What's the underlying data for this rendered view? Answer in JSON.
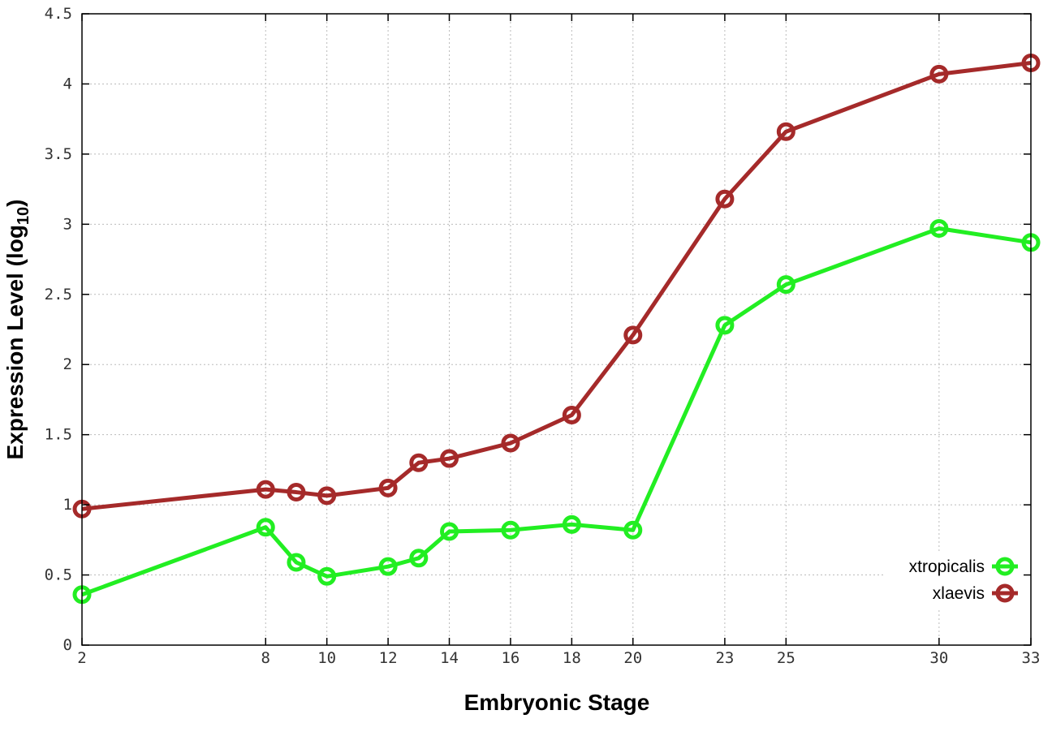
{
  "chart_data": {
    "type": "line",
    "title": "",
    "xlabel": "Embryonic Stage",
    "ylabel": "Expression Level (log",
    "ylabel_subscript": "10",
    "ylabel_close": ")",
    "x": [
      2,
      8,
      9,
      10,
      12,
      13,
      14,
      16,
      18,
      20,
      23,
      25,
      30,
      33
    ],
    "xticks": [
      2,
      8,
      10,
      12,
      14,
      16,
      18,
      20,
      23,
      25,
      30,
      33
    ],
    "yticks": [
      "0",
      "0.5",
      "1",
      "1.5",
      "2",
      "2.5",
      "3",
      "3.5",
      "4",
      "4.5"
    ],
    "xlim": [
      2,
      33
    ],
    "ylim": [
      0,
      4.5
    ],
    "grid": true,
    "legend_position": "bottom-right",
    "series": [
      {
        "name": "xtropicalis",
        "color": "#22ee22",
        "values": [
          0.36,
          0.84,
          0.59,
          0.49,
          0.56,
          0.62,
          0.81,
          0.82,
          0.86,
          0.82,
          2.28,
          2.57,
          2.97,
          2.87
        ]
      },
      {
        "name": "xlaevis",
        "color": "#a52a2a",
        "values": [
          0.97,
          1.11,
          1.09,
          1.065,
          1.12,
          1.3,
          1.33,
          1.44,
          1.64,
          2.21,
          3.18,
          3.66,
          4.07,
          4.15
        ]
      }
    ]
  }
}
